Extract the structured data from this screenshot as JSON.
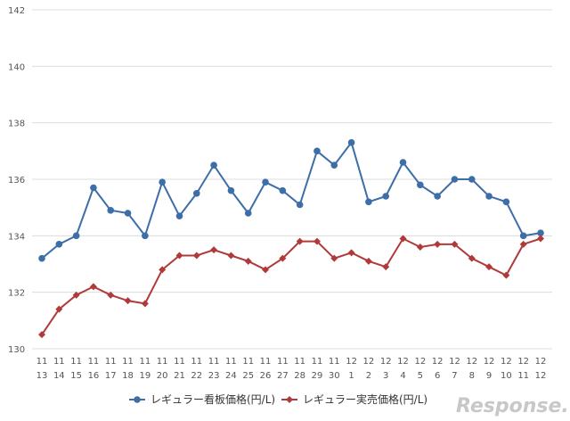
{
  "chart_data": {
    "type": "line",
    "title": "",
    "xlabel": "",
    "ylabel": "",
    "ylim": [
      130,
      142
    ],
    "yticks": [
      130,
      132,
      134,
      136,
      138,
      140,
      142
    ],
    "grid": true,
    "legend_position": "bottom",
    "categories": [
      [
        "11",
        "13"
      ],
      [
        "11",
        "14"
      ],
      [
        "11",
        "15"
      ],
      [
        "11",
        "16"
      ],
      [
        "11",
        "17"
      ],
      [
        "11",
        "18"
      ],
      [
        "11",
        "19"
      ],
      [
        "11",
        "20"
      ],
      [
        "11",
        "21"
      ],
      [
        "11",
        "22"
      ],
      [
        "11",
        "23"
      ],
      [
        "11",
        "24"
      ],
      [
        "11",
        "25"
      ],
      [
        "11",
        "26"
      ],
      [
        "11",
        "27"
      ],
      [
        "11",
        "28"
      ],
      [
        "11",
        "29"
      ],
      [
        "11",
        "30"
      ],
      [
        "12",
        "1"
      ],
      [
        "12",
        "2"
      ],
      [
        "12",
        "3"
      ],
      [
        "12",
        "4"
      ],
      [
        "12",
        "5"
      ],
      [
        "12",
        "6"
      ],
      [
        "12",
        "7"
      ],
      [
        "12",
        "8"
      ],
      [
        "12",
        "9"
      ],
      [
        "12",
        "10"
      ],
      [
        "12",
        "11"
      ],
      [
        "12",
        "12"
      ]
    ],
    "series": [
      {
        "name": "レギュラー看板価格(円/L)",
        "color": "#3d6ea8",
        "marker": "circle",
        "values": [
          133.2,
          133.7,
          134.0,
          135.7,
          134.9,
          134.8,
          134.0,
          135.9,
          134.7,
          135.5,
          136.5,
          135.6,
          134.8,
          135.9,
          135.6,
          135.1,
          137.0,
          136.5,
          137.3,
          135.2,
          135.4,
          136.6,
          135.8,
          135.4,
          136.0,
          136.0,
          135.4,
          135.2,
          134.0,
          134.1
        ]
      },
      {
        "name": "レギュラー実売価格(円/L)",
        "color": "#b03a3a",
        "marker": "diamond",
        "values": [
          130.5,
          131.4,
          131.9,
          132.2,
          131.9,
          131.7,
          131.6,
          132.8,
          133.3,
          133.3,
          133.5,
          133.3,
          133.1,
          132.8,
          133.2,
          133.8,
          133.8,
          133.2,
          133.4,
          133.1,
          132.9,
          133.9,
          133.6,
          133.7,
          133.7,
          133.2,
          132.9,
          132.6,
          133.7,
          133.9
        ]
      }
    ]
  },
  "watermark": "Response."
}
